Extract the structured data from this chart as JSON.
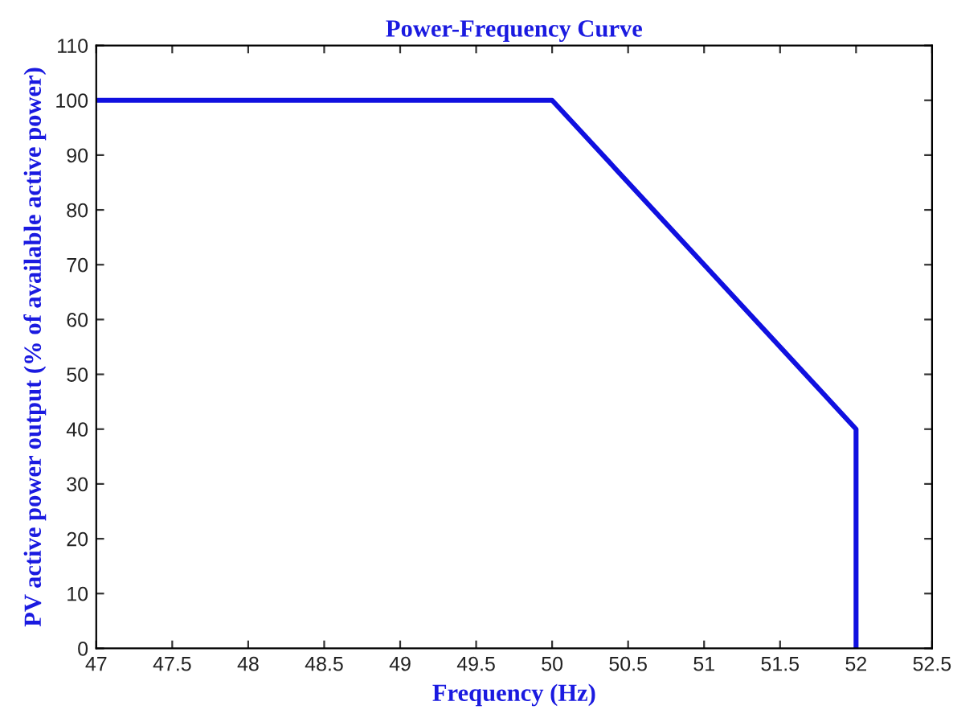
{
  "chart_data": {
    "type": "line",
    "title": "Power-Frequency Curve",
    "xlabel": "Frequency (Hz)",
    "ylabel": "PV active power output (% of available active power)",
    "x": [
      47,
      50,
      52,
      52
    ],
    "series": [
      {
        "color": "#1010e0",
        "values": [
          100,
          100,
          40,
          0
        ]
      }
    ],
    "xlim": [
      47,
      52.5
    ],
    "xticks": [
      47,
      47.5,
      48,
      48.5,
      49,
      49.5,
      50,
      50.5,
      51,
      51.5,
      52,
      52.5
    ],
    "ylim": [
      0,
      110
    ],
    "yticks": [
      0,
      10,
      20,
      30,
      40,
      50,
      60,
      70,
      80,
      90,
      100,
      110
    ],
    "grid": false,
    "legend": false,
    "marker": "none",
    "line_style": "solid"
  }
}
